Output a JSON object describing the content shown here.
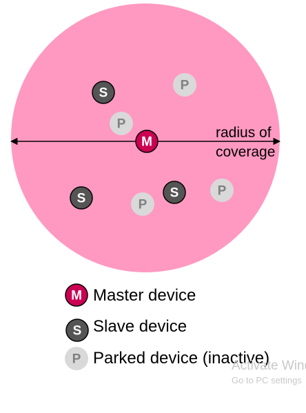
{
  "colors": {
    "coverage": "#ff99c1",
    "master_fill": "#cc0052",
    "master_letter": "#ffffff",
    "slave_fill": "#555555",
    "slave_letter": "#ffffff",
    "parked_fill": "#d9d9d9",
    "parked_letter": "#808080",
    "node_stroke": "#000000"
  },
  "node_letters": {
    "master": "M",
    "slave": "S",
    "parked": "P"
  },
  "coverage_label": {
    "line1": "radius of",
    "line2": "coverage"
  },
  "legend": [
    {
      "kind": "master",
      "label": "Master device"
    },
    {
      "kind": "slave",
      "label": "Slave device"
    },
    {
      "kind": "parked",
      "label": "Parked device (inactive)"
    }
  ],
  "watermark": {
    "line1": "Activate Windows",
    "line2": "Go to PC settings"
  }
}
